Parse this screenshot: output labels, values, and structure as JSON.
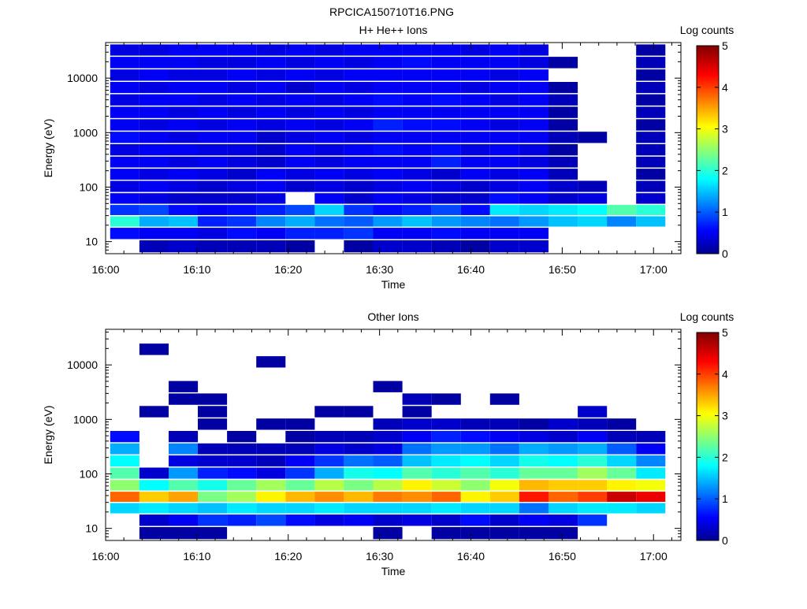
{
  "figure_title": "RPCICA150710T16.PNG",
  "colorbar_ticks": [
    "0",
    "1",
    "2",
    "3",
    "4",
    "5"
  ],
  "chart_data": [
    {
      "type": "heatmap",
      "title": "H+ He++ Ions",
      "xlabel": "Time",
      "ylabel": "Energy (eV)",
      "colorbar_label": "Log counts",
      "colorbar_range": [
        0,
        5
      ],
      "y_scale": "log",
      "ylim": [
        6,
        45000
      ],
      "xlim": [
        "16:00",
        "17:03"
      ],
      "x_ticks": [
        "16:00",
        "16:10",
        "16:20",
        "16:30",
        "16:40",
        "16:50",
        "17:00"
      ],
      "y_ticks": [
        "10",
        "100",
        "1000",
        "10000"
      ],
      "time_bins_start": [
        "16:00.5",
        "16:03.7",
        "16:06.9",
        "16:10.1",
        "16:13.3",
        "16:16.5",
        "16:19.7",
        "16:22.9",
        "16:26.1",
        "16:29.3",
        "16:32.5",
        "16:35.7",
        "16:38.9",
        "16:42.1",
        "16:45.3",
        "16:48.5",
        "16:51.7",
        "16:54.9",
        "16:58.1"
      ],
      "energy_bins_eV": [
        8,
        14,
        23,
        37,
        60,
        100,
        170,
        280,
        470,
        800,
        1350,
        2300,
        3900,
        6600,
        11000,
        19000,
        32000
      ],
      "log_counts": [
        [
          -1,
          0.2,
          0.3,
          0.2,
          0.2,
          0.2,
          0.1,
          -1,
          0.1,
          0.3,
          0.3,
          0.2,
          0.1,
          0.3,
          0.3,
          -1,
          -1,
          -1,
          -1
        ],
        [
          0.6,
          0.5,
          0.5,
          0.4,
          0.6,
          0.5,
          0.7,
          0.7,
          0.8,
          0.5,
          0.5,
          0.6,
          0.5,
          0.5,
          0.5,
          -1,
          -1,
          -1,
          -1
        ],
        [
          2.0,
          1.4,
          1.5,
          0.7,
          0.8,
          1.2,
          1.4,
          1.1,
          1.0,
          1.3,
          1.5,
          1.3,
          1.2,
          1.1,
          1.3,
          1.5,
          1.6,
          1.2,
          1.5
        ],
        [
          0.8,
          0.9,
          0.6,
          0.5,
          0.6,
          0.7,
          0.9,
          1.6,
          0.8,
          0.6,
          0.7,
          0.9,
          0.6,
          1.7,
          1.6,
          1.7,
          1.8,
          2.2,
          2.0
        ],
        [
          0.5,
          0.4,
          0.3,
          0.3,
          0.3,
          0.4,
          -1,
          0.5,
          0.3,
          0.5,
          0.4,
          0.3,
          0.3,
          0.6,
          0.5,
          0.3,
          0.4,
          -1,
          0.3
        ],
        [
          0.4,
          0.5,
          0.4,
          0.3,
          0.4,
          0.5,
          0.3,
          0.4,
          0.3,
          0.4,
          0.5,
          0.4,
          0.3,
          0.4,
          0.5,
          0.3,
          0.2,
          -1,
          0.2
        ],
        [
          0.5,
          0.4,
          0.5,
          0.4,
          0.3,
          0.5,
          0.4,
          0.5,
          0.4,
          0.5,
          0.4,
          0.3,
          0.5,
          0.4,
          0.5,
          0.2,
          -1,
          -1,
          0.1
        ],
        [
          0.5,
          0.5,
          0.4,
          0.5,
          0.4,
          0.3,
          0.5,
          0.4,
          0.5,
          0.5,
          0.5,
          0.7,
          0.5,
          0.5,
          0.4,
          0.2,
          -1,
          -1,
          0.2
        ],
        [
          0.4,
          0.5,
          0.5,
          0.4,
          0.4,
          0.3,
          0.5,
          0.4,
          0.5,
          0.6,
          0.5,
          0.6,
          0.4,
          0.5,
          0.4,
          0.1,
          -1,
          -1,
          0.2
        ],
        [
          0.6,
          0.5,
          0.4,
          0.5,
          0.5,
          0.3,
          0.4,
          0.5,
          0.4,
          0.5,
          0.5,
          0.5,
          0.5,
          0.5,
          0.5,
          0.2,
          0.1,
          -1,
          0.2
        ],
        [
          0.5,
          0.4,
          0.5,
          0.4,
          0.5,
          0.4,
          0.5,
          0.4,
          0.5,
          0.7,
          0.6,
          0.6,
          0.5,
          0.4,
          0.5,
          0.1,
          -1,
          -1,
          0.1
        ],
        [
          0.5,
          0.5,
          0.4,
          0.5,
          0.4,
          0.5,
          0.4,
          0.5,
          0.4,
          0.5,
          0.5,
          0.5,
          0.5,
          0.5,
          0.5,
          0.1,
          -1,
          -1,
          0.2
        ],
        [
          0.4,
          0.5,
          0.5,
          0.4,
          0.5,
          0.4,
          0.5,
          0.4,
          0.5,
          0.6,
          0.5,
          0.6,
          0.5,
          0.4,
          0.5,
          0.2,
          -1,
          -1,
          0.1
        ],
        [
          0.5,
          0.4,
          0.5,
          0.5,
          0.4,
          0.5,
          0.3,
          0.5,
          0.4,
          0.5,
          0.5,
          0.5,
          0.4,
          0.5,
          0.5,
          0.1,
          -1,
          -1,
          0.2
        ],
        [
          0.4,
          0.5,
          0.4,
          0.4,
          0.5,
          0.4,
          0.5,
          0.4,
          0.5,
          0.5,
          0.5,
          0.5,
          0.5,
          0.4,
          0.5,
          -1,
          -1,
          -1,
          0.1
        ],
        [
          0.5,
          0.5,
          0.5,
          0.4,
          0.4,
          0.5,
          0.4,
          0.5,
          0.4,
          0.5,
          0.6,
          0.5,
          0.5,
          0.5,
          0.4,
          0.1,
          -1,
          -1,
          0.2
        ],
        [
          0.4,
          0.4,
          0.5,
          0.5,
          0.5,
          0.4,
          0.5,
          0.4,
          0.5,
          0.5,
          0.5,
          0.5,
          0.4,
          0.5,
          0.4,
          -1,
          -1,
          -1,
          0.1
        ]
      ]
    },
    {
      "type": "heatmap",
      "title": "Other Ions",
      "xlabel": "Time",
      "ylabel": "Energy (eV)",
      "colorbar_label": "Log counts",
      "colorbar_range": [
        0,
        5
      ],
      "y_scale": "log",
      "ylim": [
        6,
        45000
      ],
      "xlim": [
        "16:00",
        "17:03"
      ],
      "x_ticks": [
        "16:00",
        "16:10",
        "16:20",
        "16:30",
        "16:40",
        "16:50",
        "17:00"
      ],
      "y_ticks": [
        "10",
        "100",
        "1000",
        "10000"
      ],
      "time_bins_start": [
        "16:00.5",
        "16:03.7",
        "16:06.9",
        "16:10.1",
        "16:13.3",
        "16:16.5",
        "16:19.7",
        "16:22.9",
        "16:26.1",
        "16:29.3",
        "16:32.5",
        "16:35.7",
        "16:38.9",
        "16:42.1",
        "16:45.3",
        "16:48.5",
        "16:51.7",
        "16:54.9",
        "16:58.1"
      ],
      "energy_bins_eV": [
        8,
        14,
        23,
        37,
        60,
        100,
        170,
        280,
        470,
        800,
        1350,
        2300,
        3900,
        6600,
        11000,
        19000,
        32000
      ],
      "log_counts": [
        [
          -1,
          0.1,
          0.1,
          0.1,
          -1,
          -1,
          -1,
          -1,
          -1,
          0.1,
          -1,
          0.1,
          0.1,
          0.1,
          0.1,
          0.1,
          -1,
          -1,
          -1
        ],
        [
          -1,
          0.3,
          0.5,
          0.8,
          0.7,
          0.9,
          0.6,
          0.4,
          0.5,
          0.3,
          0.4,
          0.3,
          0.6,
          0.3,
          0.5,
          0.4,
          0.8,
          -1,
          -1
        ],
        [
          1.6,
          1.7,
          1.6,
          1.5,
          1.7,
          1.6,
          1.6,
          1.7,
          1.6,
          1.6,
          1.6,
          1.7,
          1.6,
          1.6,
          1.1,
          1.6,
          1.7,
          1.7,
          1.6
        ],
        [
          3.8,
          3.3,
          3.5,
          2.4,
          2.6,
          3.1,
          3.4,
          3.6,
          3.4,
          3.7,
          3.6,
          3.8,
          3.1,
          3.3,
          4.2,
          3.8,
          4.0,
          4.6,
          4.4
        ],
        [
          2.5,
          1.8,
          2.2,
          1.9,
          2.3,
          2.6,
          2.3,
          2.7,
          2.4,
          2.7,
          3.1,
          2.8,
          2.5,
          3.0,
          3.4,
          3.3,
          3.3,
          3.1,
          3.0
        ],
        [
          2.2,
          0.3,
          1.3,
          0.7,
          0.6,
          0.4,
          0.8,
          1.4,
          1.9,
          1.8,
          2.2,
          2.0,
          2.2,
          2.0,
          2.3,
          2.3,
          2.6,
          2.3,
          1.7
        ],
        [
          1.8,
          -1,
          0.4,
          0.3,
          0.3,
          0.2,
          0.5,
          0.8,
          1.1,
          1.0,
          1.5,
          1.7,
          1.8,
          1.6,
          1.9,
          1.8,
          2.0,
          1.6,
          1.2
        ],
        [
          1.4,
          -1,
          1.2,
          0.2,
          0.2,
          0.2,
          0.2,
          0.4,
          0.3,
          0.4,
          1.1,
          1.3,
          1.3,
          1.1,
          1.4,
          1.3,
          1.4,
          1.0,
          0.5
        ],
        [
          0.6,
          -1,
          0.2,
          -1,
          0.1,
          -1,
          0.1,
          0.2,
          0.2,
          0.3,
          0.5,
          0.7,
          0.6,
          0.5,
          0.4,
          0.3,
          0.5,
          0.2,
          0.2
        ],
        [
          -1,
          -1,
          -1,
          0.1,
          -1,
          0.1,
          0.1,
          -1,
          -1,
          0.2,
          0.3,
          0.3,
          0.2,
          0.2,
          0.1,
          0.3,
          0.2,
          0.1,
          -1
        ],
        [
          -1,
          0.1,
          -1,
          0.1,
          -1,
          -1,
          -1,
          0.1,
          0.1,
          -1,
          0.1,
          -1,
          -1,
          -1,
          -1,
          -1,
          0.3,
          -1,
          -1
        ],
        [
          -1,
          -1,
          0.1,
          0.1,
          -1,
          -1,
          -1,
          -1,
          -1,
          -1,
          0.2,
          0.1,
          -1,
          0.1,
          -1,
          -1,
          -1,
          -1,
          -1
        ],
        [
          -1,
          -1,
          0.1,
          -1,
          -1,
          -1,
          -1,
          -1,
          -1,
          0.1,
          -1,
          -1,
          -1,
          -1,
          -1,
          -1,
          -1,
          -1,
          -1
        ],
        [
          -1,
          -1,
          -1,
          -1,
          -1,
          -1,
          -1,
          -1,
          -1,
          -1,
          -1,
          -1,
          -1,
          -1,
          -1,
          -1,
          -1,
          -1,
          -1
        ],
        [
          -1,
          -1,
          -1,
          -1,
          -1,
          0.1,
          -1,
          -1,
          -1,
          -1,
          -1,
          -1,
          -1,
          -1,
          -1,
          -1,
          -1,
          -1,
          -1
        ],
        [
          -1,
          0.1,
          -1,
          -1,
          -1,
          -1,
          -1,
          -1,
          -1,
          -1,
          -1,
          -1,
          -1,
          -1,
          -1,
          -1,
          -1,
          -1,
          -1
        ],
        [
          -1,
          -1,
          -1,
          -1,
          -1,
          -1,
          -1,
          -1,
          -1,
          -1,
          -1,
          -1,
          -1,
          -1,
          -1,
          -1,
          -1,
          -1,
          -1
        ]
      ]
    }
  ]
}
